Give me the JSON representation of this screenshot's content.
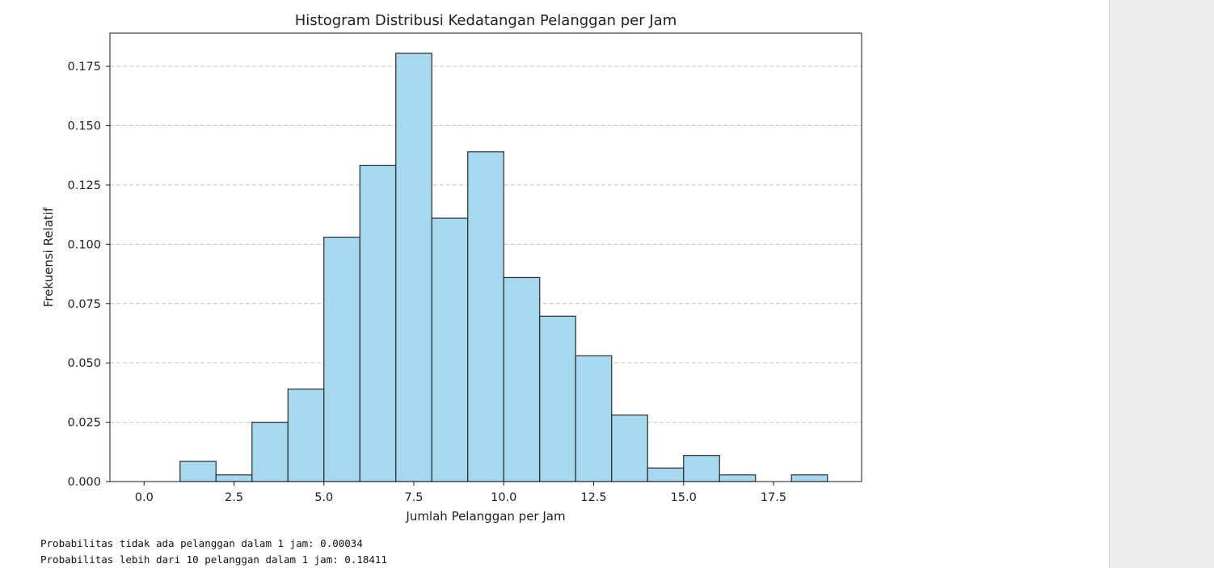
{
  "chart_data": {
    "type": "bar",
    "title": "Histogram Distribusi Kedatangan Pelanggan per Jam",
    "xlabel": "Jumlah Pelanggan per Jam",
    "ylabel": "Frekuensi Relatif",
    "xlim": [
      -0.95,
      19.95
    ],
    "ylim": [
      0,
      0.189
    ],
    "xticks": [
      "0.0",
      "2.5",
      "5.0",
      "7.5",
      "10.0",
      "12.5",
      "15.0",
      "17.5"
    ],
    "yticks": [
      "0.000",
      "0.025",
      "0.050",
      "0.075",
      "0.100",
      "0.125",
      "0.150",
      "0.175"
    ],
    "grid": "y-dashed",
    "bar_color": "#a6d9ef",
    "edge_color": "#2b2b2b",
    "bins": [
      {
        "start": 0,
        "end": 1,
        "value": 0.0
      },
      {
        "start": 1,
        "end": 2,
        "value": 0.0085
      },
      {
        "start": 2,
        "end": 3,
        "value": 0.0028
      },
      {
        "start": 3,
        "end": 4,
        "value": 0.025
      },
      {
        "start": 4,
        "end": 5,
        "value": 0.039
      },
      {
        "start": 5,
        "end": 6,
        "value": 0.103
      },
      {
        "start": 6,
        "end": 7,
        "value": 0.1333
      },
      {
        "start": 7,
        "end": 8,
        "value": 0.1805
      },
      {
        "start": 8,
        "end": 9,
        "value": 0.111
      },
      {
        "start": 9,
        "end": 10,
        "value": 0.139
      },
      {
        "start": 10,
        "end": 11,
        "value": 0.086
      },
      {
        "start": 11,
        "end": 12,
        "value": 0.0697
      },
      {
        "start": 12,
        "end": 13,
        "value": 0.053
      },
      {
        "start": 13,
        "end": 14,
        "value": 0.028
      },
      {
        "start": 14,
        "end": 15,
        "value": 0.0057
      },
      {
        "start": 15,
        "end": 16,
        "value": 0.011
      },
      {
        "start": 16,
        "end": 17,
        "value": 0.0028
      },
      {
        "start": 17,
        "end": 18,
        "value": 0.0
      },
      {
        "start": 18,
        "end": 19,
        "value": 0.0028
      }
    ]
  },
  "output": {
    "line1": "Probabilitas tidak ada pelanggan dalam 1 jam: 0.00034",
    "line2": "Probabilitas lebih dari 10 pelanggan dalam 1 jam: 0.18411"
  }
}
